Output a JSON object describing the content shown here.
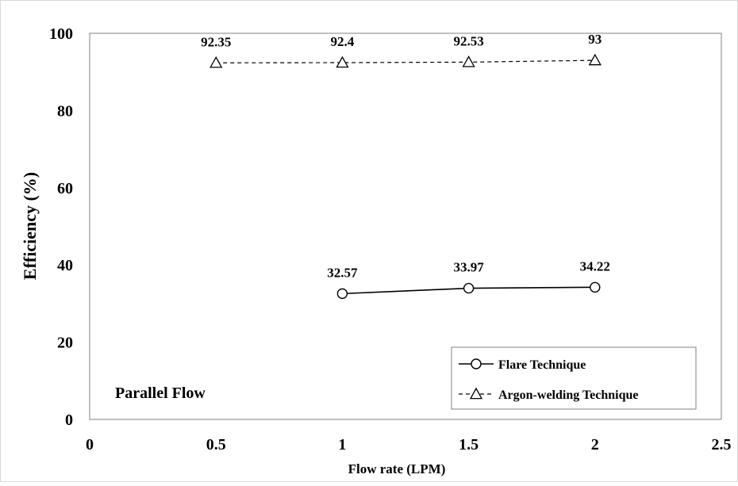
{
  "chart_data": {
    "type": "line",
    "xlabel": "Flow rate (LPM)",
    "ylabel": "Efficiency (%)",
    "xlim": [
      0,
      2.5
    ],
    "ylim": [
      0,
      100
    ],
    "xticks": [
      0,
      0.5,
      1,
      1.5,
      2,
      2.5
    ],
    "xtick_labels": [
      "0",
      "0.5",
      "1",
      "1.5",
      "2",
      "2.5"
    ],
    "yticks": [
      0,
      20,
      40,
      60,
      80,
      100
    ],
    "ytick_labels": [
      "0",
      "20",
      "40",
      "60",
      "80",
      "100"
    ],
    "grid": false,
    "legend_position": "bottom-right",
    "annotation": "Parallel Flow",
    "series": [
      {
        "name": "Flare Technique",
        "marker": "circle",
        "line_style": "solid",
        "x": [
          1,
          1.5,
          2
        ],
        "values": [
          32.57,
          33.97,
          34.22
        ],
        "labels": [
          "32.57",
          "33.97",
          "34.22"
        ]
      },
      {
        "name": "Argon-welding Technique",
        "marker": "triangle",
        "line_style": "dashed",
        "x": [
          0.5,
          1,
          1.5,
          2
        ],
        "values": [
          92.35,
          92.4,
          92.53,
          93
        ],
        "labels": [
          "92.35",
          "92.4",
          "92.53",
          "93"
        ]
      }
    ]
  }
}
